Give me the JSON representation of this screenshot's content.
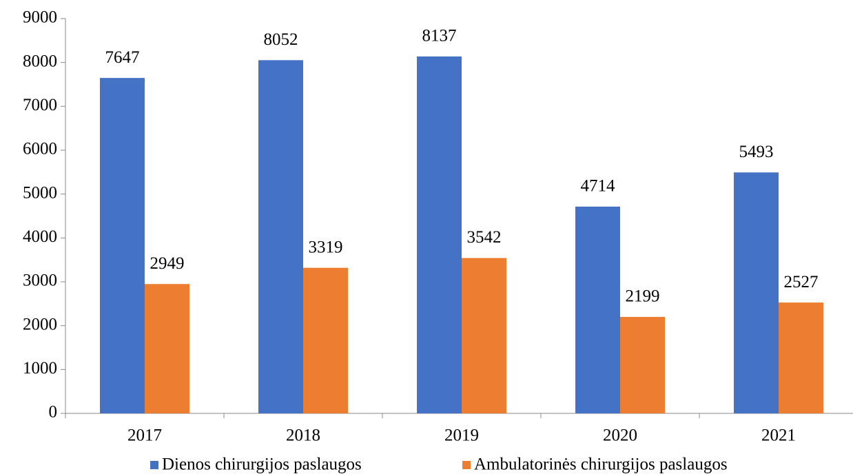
{
  "chart_data": {
    "type": "bar",
    "title": "",
    "xlabel": "",
    "ylabel": "",
    "categories": [
      "2017",
      "2018",
      "2019",
      "2020",
      "2021"
    ],
    "series": [
      {
        "name": "Dienos chirurgijos paslaugos",
        "color": "#4472C4",
        "values": [
          7647,
          8052,
          8137,
          4714,
          5493
        ]
      },
      {
        "name": "Ambulatorinės chirurgijos paslaugos",
        "color": "#ED7D31",
        "values": [
          2949,
          3319,
          3542,
          2199,
          2527
        ]
      }
    ],
    "ylim": [
      0,
      9000
    ],
    "yticks": [
      0,
      1000,
      2000,
      3000,
      4000,
      5000,
      6000,
      7000,
      8000,
      9000
    ],
    "grid": false,
    "legend": "bottom",
    "data_labels": true
  }
}
